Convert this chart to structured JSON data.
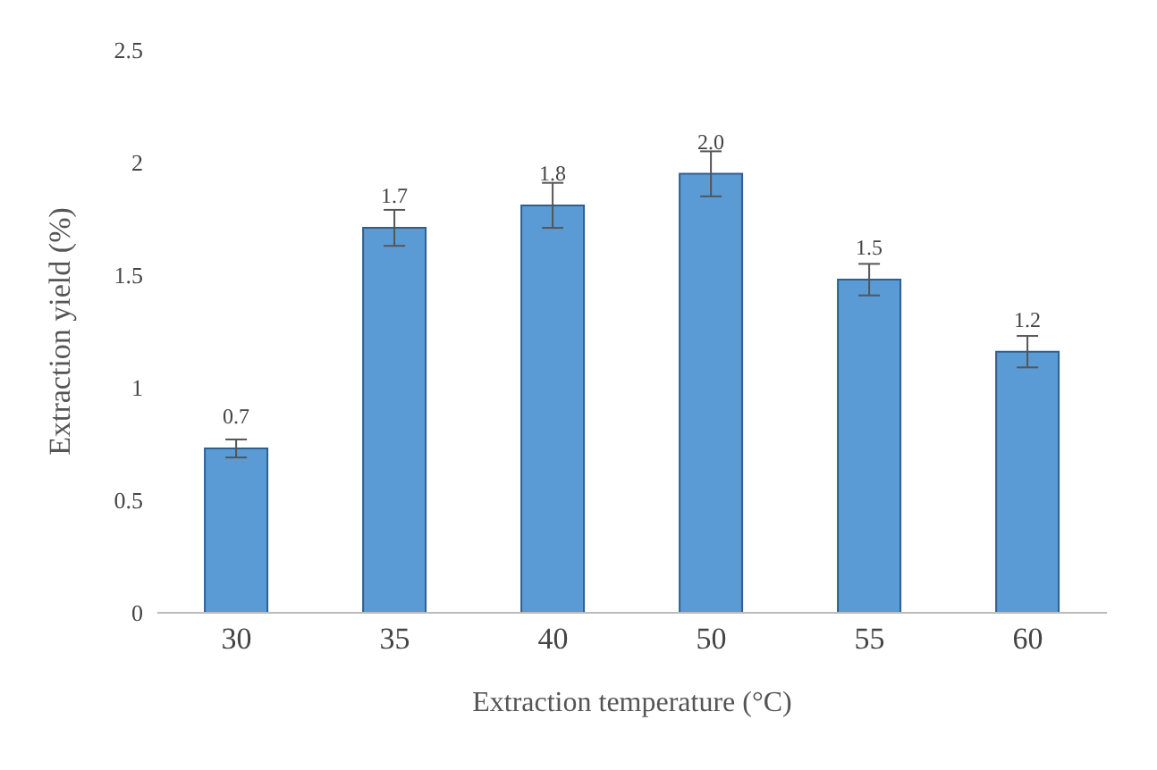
{
  "chart_data": {
    "type": "bar",
    "xlabel": "Extraction temperature (°C)",
    "ylabel": "Extraction yield (%)",
    "categories": [
      "30",
      "35",
      "40",
      "50",
      "55",
      "60"
    ],
    "values": [
      0.73,
      1.71,
      1.81,
      1.95,
      1.48,
      1.16
    ],
    "errors": [
      0.04,
      0.08,
      0.1,
      0.1,
      0.07,
      0.07
    ],
    "value_labels": [
      "0.7",
      "1.7",
      "1.8",
      "2.0",
      "1.5",
      "1.2"
    ],
    "color": "#5b9bd5",
    "ylim": [
      0,
      2.5
    ],
    "yticks": [
      0,
      0.5,
      1,
      1.5,
      2,
      2.5
    ],
    "grid": false,
    "legend": false
  }
}
